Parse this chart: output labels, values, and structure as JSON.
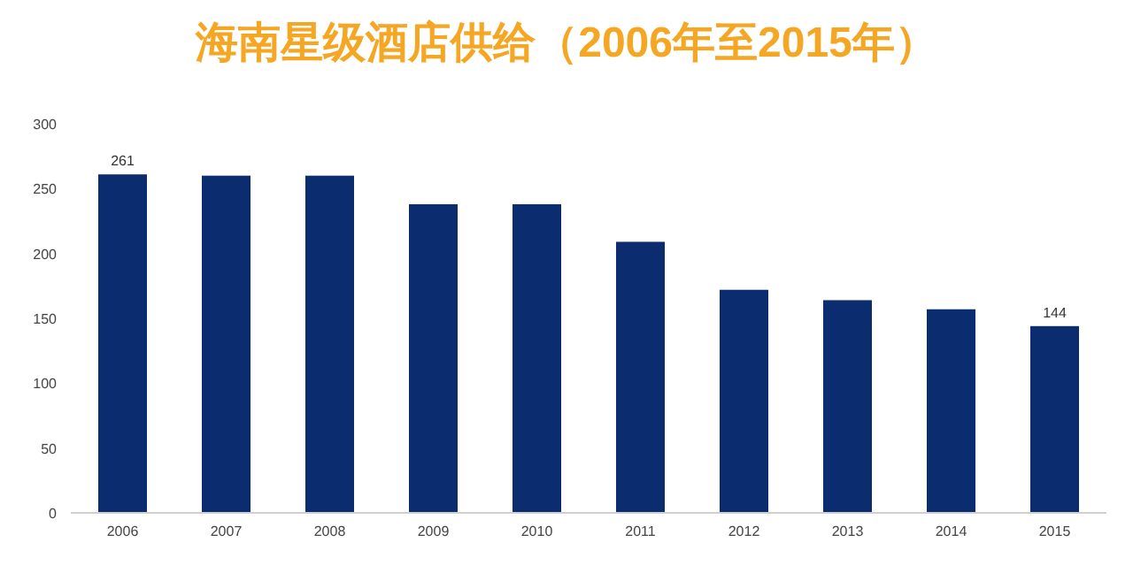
{
  "chart_data": {
    "type": "bar",
    "title": "海南星级酒店供给（2006年至2015年）",
    "categories": [
      "2006",
      "2007",
      "2008",
      "2009",
      "2010",
      "2011",
      "2012",
      "2013",
      "2014",
      "2015"
    ],
    "values": [
      261,
      260,
      260,
      238,
      238,
      209,
      172,
      164,
      157,
      144
    ],
    "value_labels": [
      "261",
      null,
      null,
      null,
      null,
      null,
      null,
      null,
      null,
      "144"
    ],
    "color": "#0b2d6f",
    "ylim": [
      0,
      300
    ],
    "yticks": [
      0,
      50,
      100,
      150,
      200,
      250,
      300
    ]
  }
}
